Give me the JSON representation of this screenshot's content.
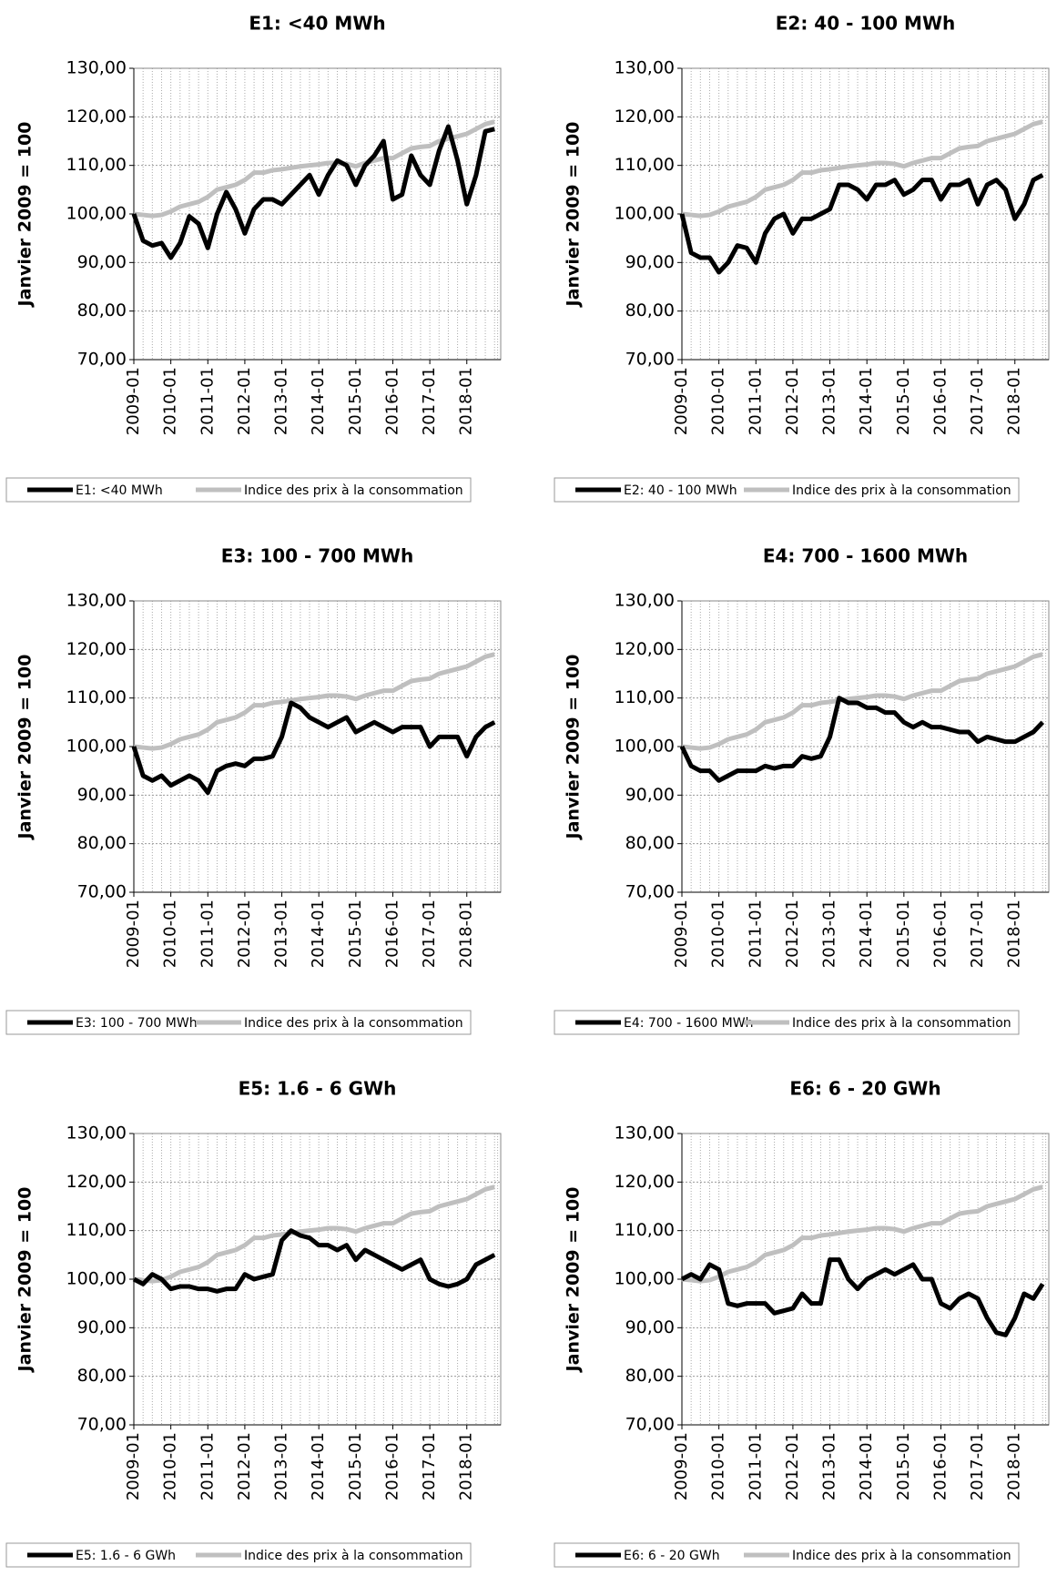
{
  "chart_data": [
    {
      "type": "line",
      "title": "E1: <40 MWh",
      "y_label": "Janvier 2009 = 100",
      "categories": [
        "2009-01",
        null,
        null,
        null,
        "2010-01",
        null,
        null,
        null,
        "2011-01",
        null,
        null,
        null,
        "2012-01",
        null,
        null,
        null,
        "2013-01",
        null,
        null,
        null,
        "2014-01",
        null,
        null,
        null,
        "2015-01",
        null,
        null,
        null,
        "2016-01",
        null,
        null,
        null,
        "2017-01",
        null,
        null,
        null,
        "2018-01",
        null,
        null,
        null
      ],
      "ylim": [
        70,
        130
      ],
      "yticks": [
        {
          "value": 70,
          "label": "70,00"
        },
        {
          "value": 80,
          "label": "80,00"
        },
        {
          "value": 90,
          "label": "90,00"
        },
        {
          "value": 100,
          "label": "100,00"
        },
        {
          "value": 110,
          "label": "110,00"
        },
        {
          "value": 120,
          "label": "120,00"
        },
        {
          "value": 130,
          "label": "130,00"
        }
      ],
      "grid": true,
      "series": [
        {
          "name": "E1: <40 MWh",
          "color": "#000000",
          "values": [
            100,
            94.5,
            93.5,
            94,
            91,
            94,
            99.5,
            98,
            93,
            100,
            104.5,
            101,
            96,
            101,
            103,
            103,
            102,
            104,
            106,
            108,
            104,
            108,
            111,
            110,
            106,
            110,
            112,
            115,
            103,
            104,
            112,
            108,
            106,
            113,
            118,
            111,
            102,
            108,
            117,
            117.5
          ]
        },
        {
          "name": "Indice des prix à la consommation",
          "color": "#bfbfbf",
          "values": [
            100,
            99.8,
            99.6,
            99.8,
            100.5,
            101.5,
            102,
            102.5,
            103.5,
            105,
            105.5,
            106,
            107,
            108.5,
            108.5,
            109,
            109.2,
            109.5,
            109.8,
            110,
            110.2,
            110.5,
            110.5,
            110.3,
            109.8,
            110.5,
            111,
            111.5,
            111.5,
            112.5,
            113.5,
            113.8,
            114,
            115,
            115.5,
            116,
            116.5,
            117.5,
            118.5,
            119
          ]
        }
      ]
    },
    {
      "type": "line",
      "title": "E2: 40 - 100 MWh",
      "y_label": "Janvier 2009 = 100",
      "categories": [
        "2009-01",
        null,
        null,
        null,
        "2010-01",
        null,
        null,
        null,
        "2011-01",
        null,
        null,
        null,
        "2012-01",
        null,
        null,
        null,
        "2013-01",
        null,
        null,
        null,
        "2014-01",
        null,
        null,
        null,
        "2015-01",
        null,
        null,
        null,
        "2016-01",
        null,
        null,
        null,
        "2017-01",
        null,
        null,
        null,
        "2018-01",
        null,
        null,
        null
      ],
      "ylim": [
        70,
        130
      ],
      "yticks": [
        {
          "value": 70,
          "label": "70,00"
        },
        {
          "value": 80,
          "label": "80,00"
        },
        {
          "value": 90,
          "label": "90,00"
        },
        {
          "value": 100,
          "label": "100,00"
        },
        {
          "value": 110,
          "label": "110,00"
        },
        {
          "value": 120,
          "label": "120,00"
        },
        {
          "value": 130,
          "label": "130,00"
        }
      ],
      "grid": true,
      "series": [
        {
          "name": "E2: 40 - 100 MWh",
          "color": "#000000",
          "values": [
            100,
            92,
            91,
            91,
            88,
            90,
            93.5,
            93,
            90,
            96,
            99,
            100,
            96,
            99,
            99,
            100,
            101,
            106,
            106,
            105,
            103,
            106,
            106,
            107,
            104,
            105,
            107,
            107,
            103,
            106,
            106,
            107,
            102,
            106,
            107,
            105,
            99,
            102,
            107,
            108
          ]
        },
        {
          "name": "Indice des prix à la consommation",
          "color": "#bfbfbf",
          "values": [
            100,
            99.8,
            99.6,
            99.8,
            100.5,
            101.5,
            102,
            102.5,
            103.5,
            105,
            105.5,
            106,
            107,
            108.5,
            108.5,
            109,
            109.2,
            109.5,
            109.8,
            110,
            110.2,
            110.5,
            110.5,
            110.3,
            109.8,
            110.5,
            111,
            111.5,
            111.5,
            112.5,
            113.5,
            113.8,
            114,
            115,
            115.5,
            116,
            116.5,
            117.5,
            118.5,
            119
          ]
        }
      ]
    },
    {
      "type": "line",
      "title": "E3: 100 - 700 MWh",
      "y_label": "Janvier 2009 = 100",
      "categories": [
        "2009-01",
        null,
        null,
        null,
        "2010-01",
        null,
        null,
        null,
        "2011-01",
        null,
        null,
        null,
        "2012-01",
        null,
        null,
        null,
        "2013-01",
        null,
        null,
        null,
        "2014-01",
        null,
        null,
        null,
        "2015-01",
        null,
        null,
        null,
        "2016-01",
        null,
        null,
        null,
        "2017-01",
        null,
        null,
        null,
        "2018-01",
        null,
        null,
        null
      ],
      "ylim": [
        70,
        130
      ],
      "yticks": [
        {
          "value": 70,
          "label": "70,00"
        },
        {
          "value": 80,
          "label": "80,00"
        },
        {
          "value": 90,
          "label": "90,00"
        },
        {
          "value": 100,
          "label": "100,00"
        },
        {
          "value": 110,
          "label": "110,00"
        },
        {
          "value": 120,
          "label": "120,00"
        },
        {
          "value": 130,
          "label": "130,00"
        }
      ],
      "grid": true,
      "series": [
        {
          "name": "E3: 100 - 700 MWh",
          "color": "#000000",
          "values": [
            100,
            94,
            93,
            94,
            92,
            93,
            94,
            93,
            90.5,
            95,
            96,
            96.5,
            96,
            97.5,
            97.5,
            98,
            102,
            109,
            108,
            106,
            105,
            104,
            105,
            106,
            103,
            104,
            105,
            104,
            103,
            104,
            104,
            104,
            100,
            102,
            102,
            102,
            98,
            102,
            104,
            105
          ]
        },
        {
          "name": "Indice des prix à la consommation",
          "color": "#bfbfbf",
          "values": [
            100,
            99.8,
            99.6,
            99.8,
            100.5,
            101.5,
            102,
            102.5,
            103.5,
            105,
            105.5,
            106,
            107,
            108.5,
            108.5,
            109,
            109.2,
            109.5,
            109.8,
            110,
            110.2,
            110.5,
            110.5,
            110.3,
            109.8,
            110.5,
            111,
            111.5,
            111.5,
            112.5,
            113.5,
            113.8,
            114,
            115,
            115.5,
            116,
            116.5,
            117.5,
            118.5,
            119
          ]
        }
      ]
    },
    {
      "type": "line",
      "title": "E4: 700 - 1600 MWh",
      "y_label": "Janvier 2009 = 100",
      "categories": [
        "2009-01",
        null,
        null,
        null,
        "2010-01",
        null,
        null,
        null,
        "2011-01",
        null,
        null,
        null,
        "2012-01",
        null,
        null,
        null,
        "2013-01",
        null,
        null,
        null,
        "2014-01",
        null,
        null,
        null,
        "2015-01",
        null,
        null,
        null,
        "2016-01",
        null,
        null,
        null,
        "2017-01",
        null,
        null,
        null,
        "2018-01",
        null,
        null,
        null
      ],
      "ylim": [
        70,
        130
      ],
      "yticks": [
        {
          "value": 70,
          "label": "70,00"
        },
        {
          "value": 80,
          "label": "80,00"
        },
        {
          "value": 90,
          "label": "90,00"
        },
        {
          "value": 100,
          "label": "100,00"
        },
        {
          "value": 110,
          "label": "110,00"
        },
        {
          "value": 120,
          "label": "120,00"
        },
        {
          "value": 130,
          "label": "130,00"
        }
      ],
      "grid": true,
      "series": [
        {
          "name": "E4: 700 - 1600 MWh",
          "color": "#000000",
          "values": [
            100,
            96,
            95,
            95,
            93,
            94,
            95,
            95,
            95,
            96,
            95.5,
            96,
            96,
            98,
            97.5,
            98,
            102,
            110,
            109,
            109,
            108,
            108,
            107,
            107,
            105,
            104,
            105,
            104,
            104,
            103.5,
            103,
            103,
            101,
            102,
            101.5,
            101,
            101,
            102,
            103,
            105
          ]
        },
        {
          "name": "Indice des prix à la consommation",
          "color": "#bfbfbf",
          "values": [
            100,
            99.8,
            99.6,
            99.8,
            100.5,
            101.5,
            102,
            102.5,
            103.5,
            105,
            105.5,
            106,
            107,
            108.5,
            108.5,
            109,
            109.2,
            109.5,
            109.8,
            110,
            110.2,
            110.5,
            110.5,
            110.3,
            109.8,
            110.5,
            111,
            111.5,
            111.5,
            112.5,
            113.5,
            113.8,
            114,
            115,
            115.5,
            116,
            116.5,
            117.5,
            118.5,
            119
          ]
        }
      ]
    },
    {
      "type": "line",
      "title": "E5: 1.6 - 6 GWh",
      "y_label": "Janvier 2009 = 100",
      "categories": [
        "2009-01",
        null,
        null,
        null,
        "2010-01",
        null,
        null,
        null,
        "2011-01",
        null,
        null,
        null,
        "2012-01",
        null,
        null,
        null,
        "2013-01",
        null,
        null,
        null,
        "2014-01",
        null,
        null,
        null,
        "2015-01",
        null,
        null,
        null,
        "2016-01",
        null,
        null,
        null,
        "2017-01",
        null,
        null,
        null,
        "2018-01",
        null,
        null,
        null
      ],
      "ylim": [
        70,
        130
      ],
      "yticks": [
        {
          "value": 70,
          "label": "70,00"
        },
        {
          "value": 80,
          "label": "80,00"
        },
        {
          "value": 90,
          "label": "90,00"
        },
        {
          "value": 100,
          "label": "100,00"
        },
        {
          "value": 110,
          "label": "110,00"
        },
        {
          "value": 120,
          "label": "120,00"
        },
        {
          "value": 130,
          "label": "130,00"
        }
      ],
      "grid": true,
      "series": [
        {
          "name": "E5: 1.6 - 6 GWh",
          "color": "#000000",
          "values": [
            100,
            99,
            101,
            100,
            98,
            98.5,
            98.5,
            98,
            98,
            97.5,
            98,
            98,
            101,
            100,
            100.5,
            101,
            108,
            110,
            109,
            108.5,
            107,
            107,
            106,
            107,
            104,
            106,
            105,
            104,
            103,
            102,
            103,
            104,
            100,
            99,
            98.5,
            99,
            100,
            103,
            104,
            105
          ]
        },
        {
          "name": "Indice des prix à la consommation",
          "color": "#bfbfbf",
          "values": [
            100,
            99.8,
            99.6,
            99.8,
            100.5,
            101.5,
            102,
            102.5,
            103.5,
            105,
            105.5,
            106,
            107,
            108.5,
            108.5,
            109,
            109.2,
            109.5,
            109.8,
            110,
            110.2,
            110.5,
            110.5,
            110.3,
            109.8,
            110.5,
            111,
            111.5,
            111.5,
            112.5,
            113.5,
            113.8,
            114,
            115,
            115.5,
            116,
            116.5,
            117.5,
            118.5,
            119
          ]
        }
      ]
    },
    {
      "type": "line",
      "title": "E6: 6 - 20 GWh",
      "y_label": "Janvier 2009 = 100",
      "categories": [
        "2009-01",
        null,
        null,
        null,
        "2010-01",
        null,
        null,
        null,
        "2011-01",
        null,
        null,
        null,
        "2012-01",
        null,
        null,
        null,
        "2013-01",
        null,
        null,
        null,
        "2014-01",
        null,
        null,
        null,
        "2015-01",
        null,
        null,
        null,
        "2016-01",
        null,
        null,
        null,
        "2017-01",
        null,
        null,
        null,
        "2018-01",
        null,
        null,
        null
      ],
      "ylim": [
        70,
        130
      ],
      "yticks": [
        {
          "value": 70,
          "label": "70,00"
        },
        {
          "value": 80,
          "label": "80,00"
        },
        {
          "value": 90,
          "label": "90,00"
        },
        {
          "value": 100,
          "label": "100,00"
        },
        {
          "value": 110,
          "label": "110,00"
        },
        {
          "value": 120,
          "label": "120,00"
        },
        {
          "value": 130,
          "label": "130,00"
        }
      ],
      "grid": true,
      "series": [
        {
          "name": "E6: 6 - 20 GWh",
          "color": "#000000",
          "values": [
            100,
            101,
            100,
            103,
            102,
            95,
            94.5,
            95,
            95,
            95,
            93,
            93.5,
            94,
            97,
            95,
            95,
            104,
            104,
            100,
            98,
            100,
            101,
            102,
            101,
            102,
            103,
            100,
            100,
            95,
            94,
            96,
            97,
            96,
            92,
            89,
            88.5,
            92,
            97,
            96,
            99
          ]
        },
        {
          "name": "Indice des prix à la consommation",
          "color": "#bfbfbf",
          "values": [
            100,
            99.8,
            99.6,
            99.8,
            100.5,
            101.5,
            102,
            102.5,
            103.5,
            105,
            105.5,
            106,
            107,
            108.5,
            108.5,
            109,
            109.2,
            109.5,
            109.8,
            110,
            110.2,
            110.5,
            110.5,
            110.3,
            109.8,
            110.5,
            111,
            111.5,
            111.5,
            112.5,
            113.5,
            113.8,
            114,
            115,
            115.5,
            116,
            116.5,
            117.5,
            118.5,
            119
          ]
        }
      ]
    }
  ]
}
